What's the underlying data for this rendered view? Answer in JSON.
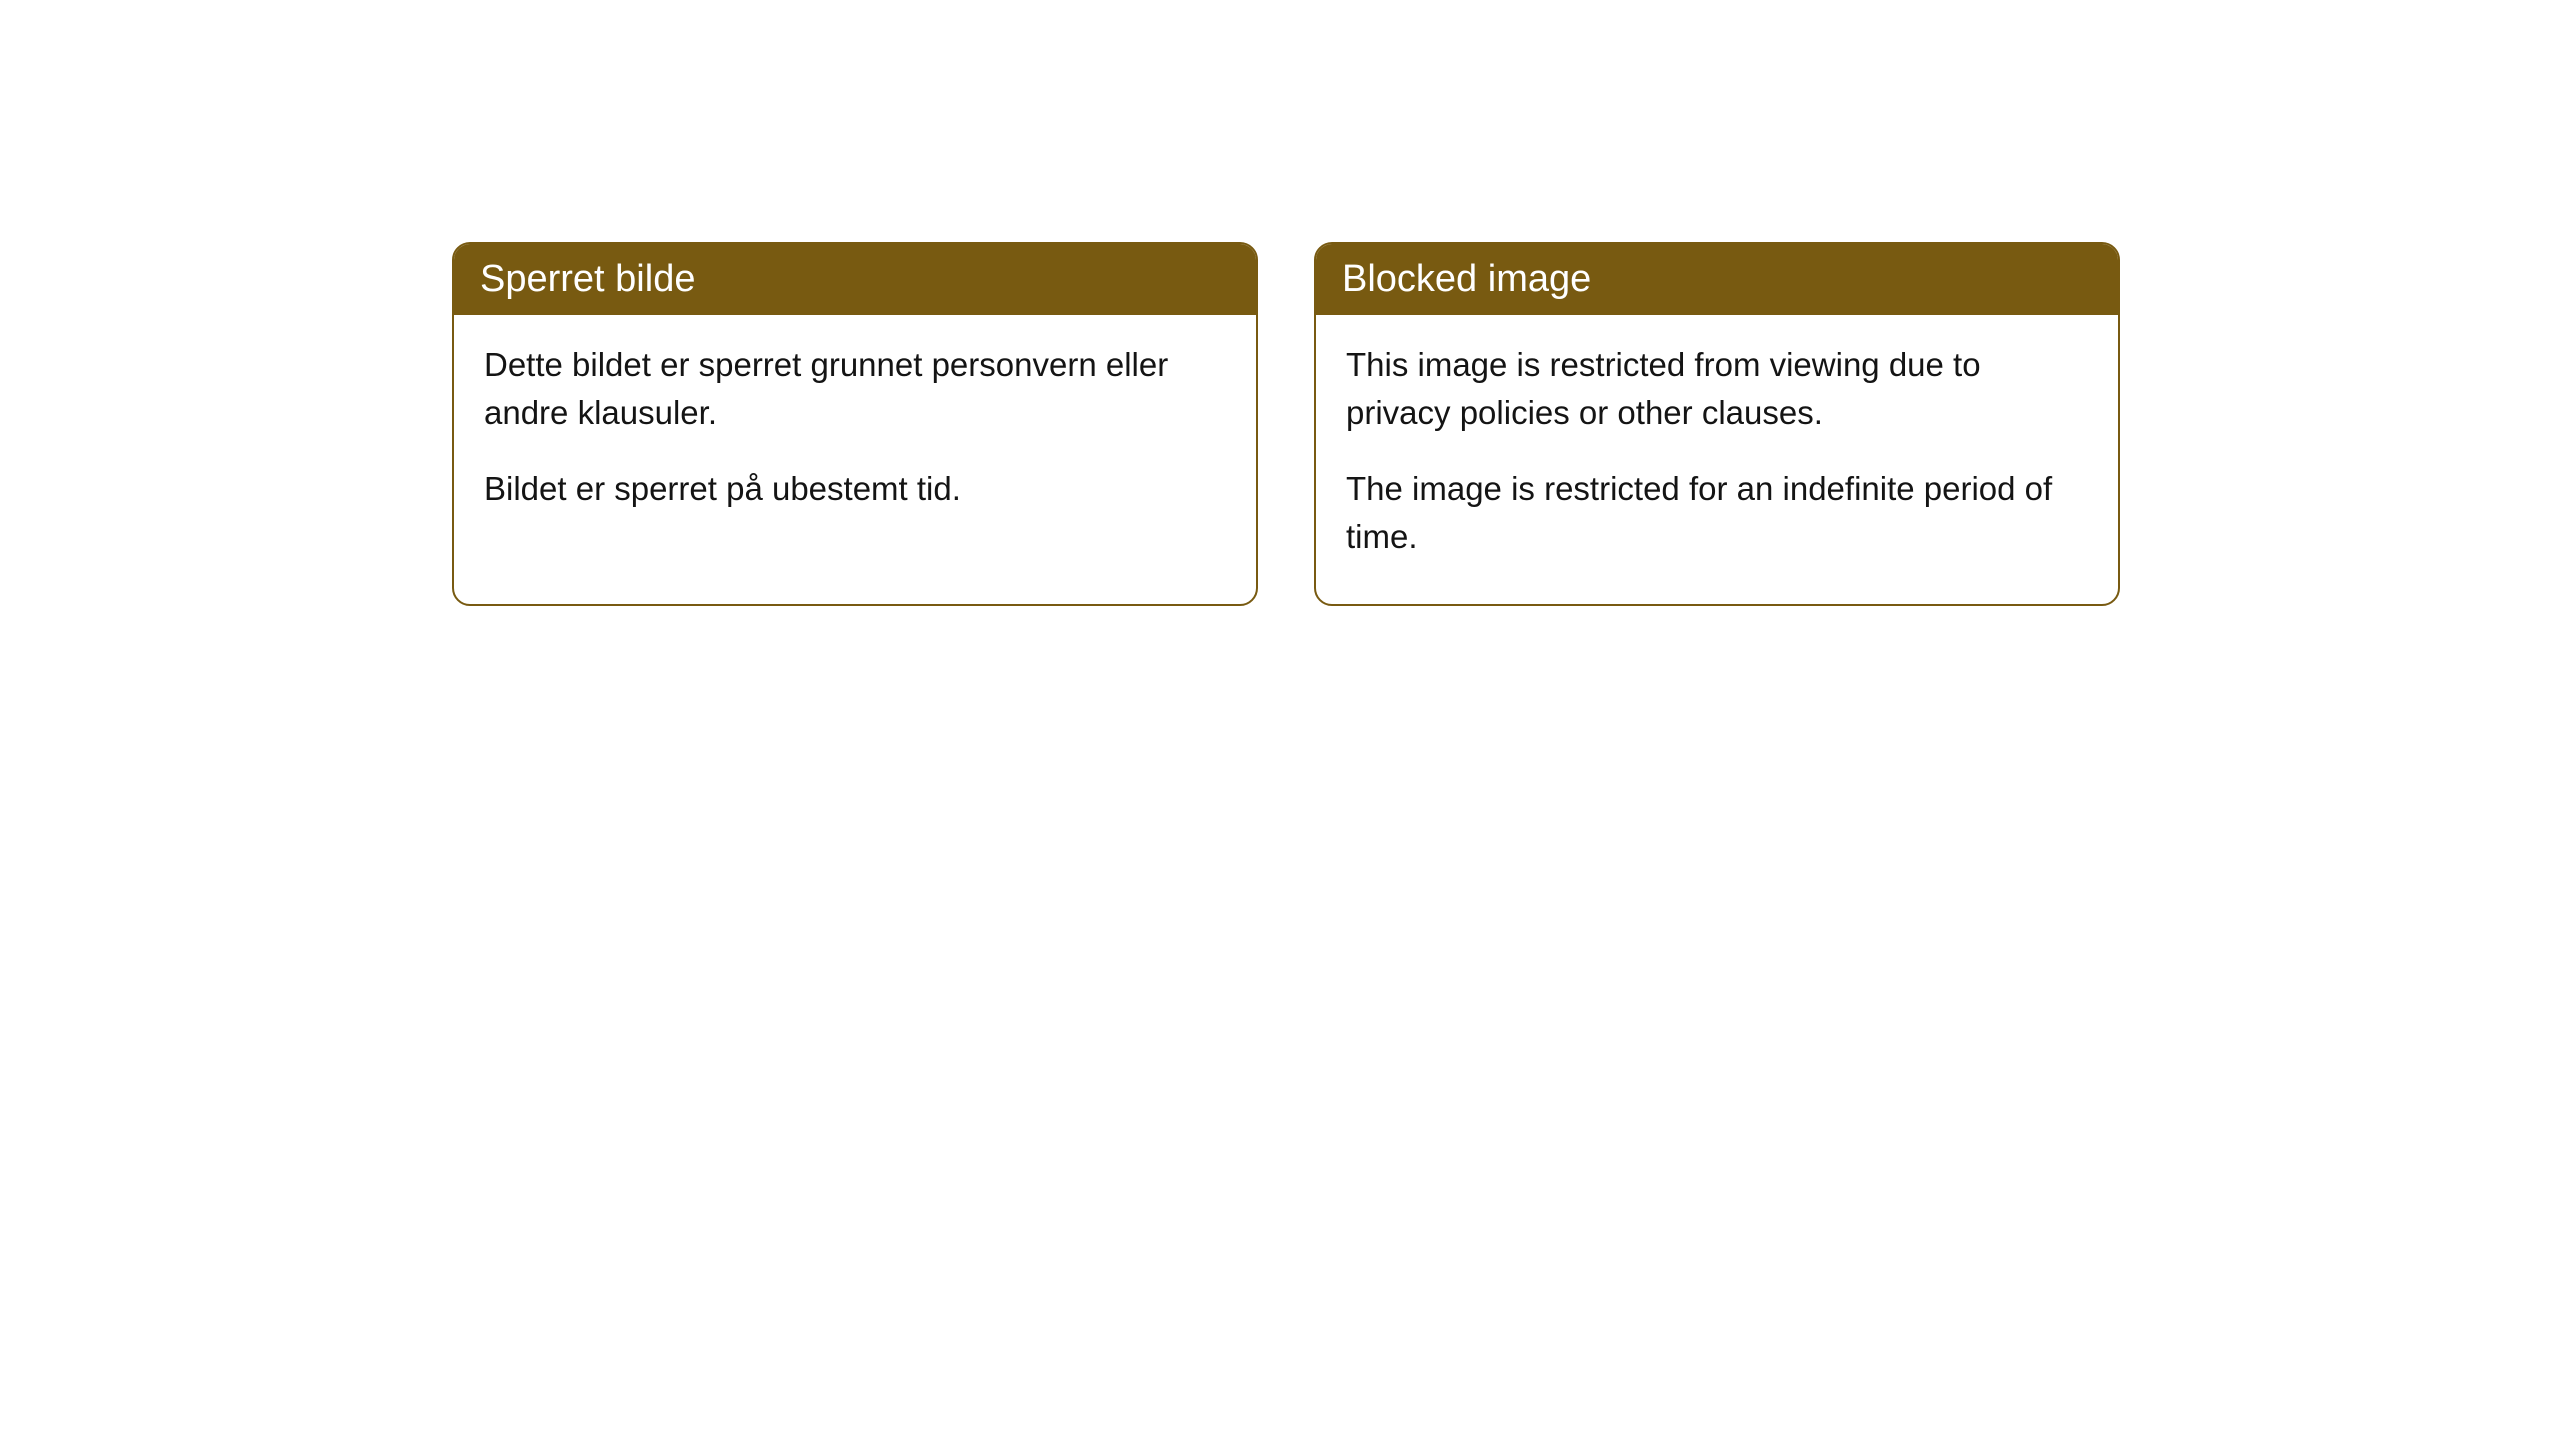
{
  "cards": [
    {
      "title": "Sperret bilde",
      "paragraph1": "Dette bildet er sperret grunnet personvern eller andre klausuler.",
      "paragraph2": "Bildet er sperret på ubestemt tid."
    },
    {
      "title": "Blocked image",
      "paragraph1": "This image is restricted from viewing due to privacy policies or other clauses.",
      "paragraph2": "The image is restricted for an indefinite period of time."
    }
  ],
  "styling": {
    "header_background": "#785a11",
    "header_text_color": "#ffffff",
    "border_color": "#785a11",
    "body_background": "#ffffff",
    "body_text_color": "#141414",
    "border_radius": 18,
    "header_font_size": 38,
    "body_font_size": 33
  }
}
